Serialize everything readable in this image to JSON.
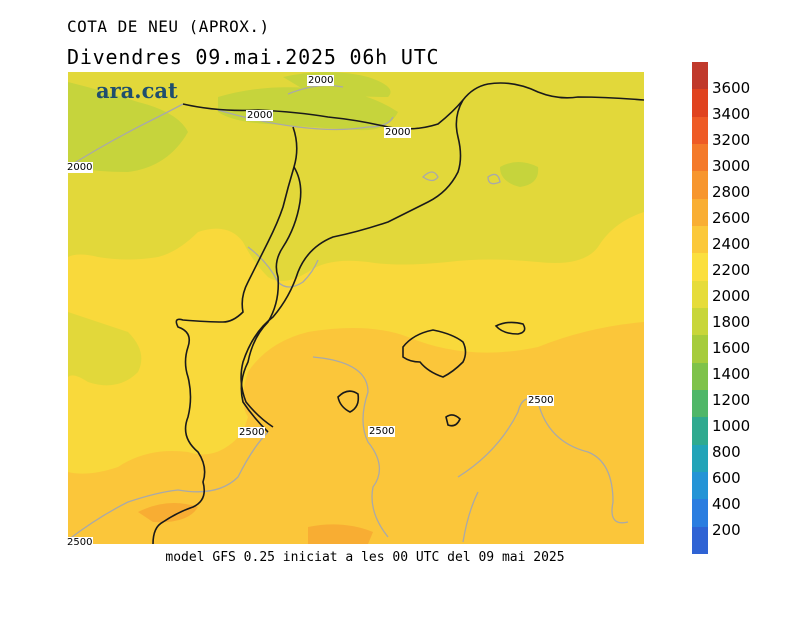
{
  "title": "COTA DE NEU (APROX.)",
  "subtitle": "Divendres  09.mai.2025 06h UTC",
  "brand": "ara.cat",
  "footer": "model GFS 0.25 iniciat a les 00 UTC del 09 mai 2025",
  "contour_labels": {
    "c1": "2000",
    "c2": "2000",
    "c3": "2000",
    "c4": "2000",
    "c5": "2500",
    "c6": "2500",
    "c7": "2500",
    "c8": "2500"
  },
  "colorbar": {
    "labels": [
      "3600",
      "3400",
      "3200",
      "3000",
      "2800",
      "2600",
      "2400",
      "2200",
      "2000",
      "1800",
      "1600",
      "1400",
      "1200",
      "1000",
      "800",
      "600",
      "400",
      "200"
    ],
    "colors": [
      "#c0392b",
      "#e0431f",
      "#ee5b26",
      "#f47a2a",
      "#f7962e",
      "#f9ae33",
      "#fbc83a",
      "#fbdf3e",
      "#e6dc3a",
      "#c8d63a",
      "#a6cc3c",
      "#7ec24a",
      "#4fb768",
      "#2faa8f",
      "#22a4b8",
      "#2494d6",
      "#2a7de0",
      "#2f63d4"
    ]
  },
  "map_colors": {
    "band_1800": "#c6d43c",
    "band_2000": "#e2d83a",
    "band_2200": "#f9d93b",
    "band_2400": "#fbc63a",
    "band_2600": "#f8ad33",
    "contour": "#a9a9a9",
    "coast": "#1a1a1a"
  }
}
